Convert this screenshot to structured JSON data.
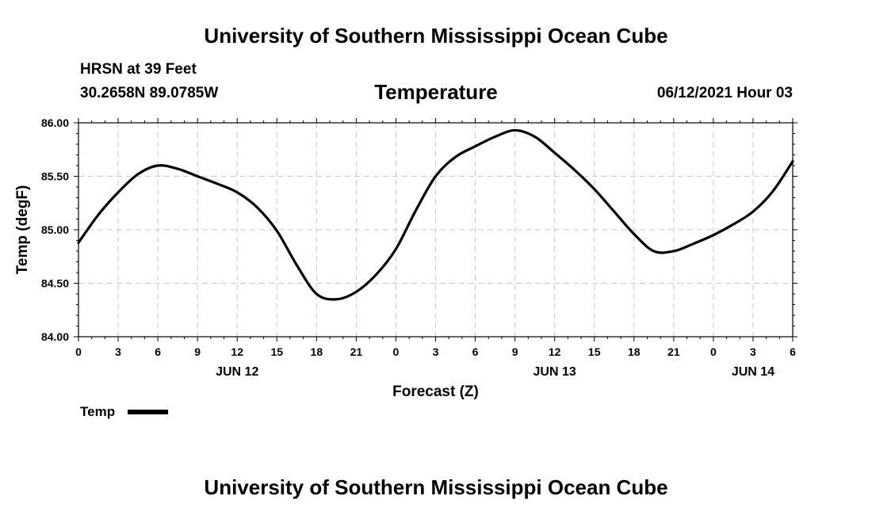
{
  "header": {
    "title": "University of Southern Mississippi Ocean Cube",
    "station": "HRSN at 39 Feet",
    "coords": "30.2658N  89.0785W",
    "variable": "Temperature",
    "datetime": "06/12/2021 Hour 03"
  },
  "footer": {
    "title": "University of Southern Mississippi Ocean Cube"
  },
  "chart_data": {
    "type": "line",
    "title": "Temperature",
    "xlabel": "Forecast (Z)",
    "ylabel": "Temp (degF)",
    "ylim": [
      84.0,
      86.0
    ],
    "xlim": [
      0,
      54
    ],
    "grid": true,
    "legend_position": "bottom-left",
    "y_ticks": [
      "84.00",
      "84.50",
      "85.00",
      "85.50",
      "86.00"
    ],
    "x_ticks": [
      "0",
      "3",
      "6",
      "9",
      "12",
      "15",
      "18",
      "21",
      "0",
      "3",
      "6",
      "9",
      "12",
      "15",
      "18",
      "21",
      "0",
      "3",
      "6"
    ],
    "date_labels": [
      {
        "hour_offset": 12,
        "label": "JUN 12"
      },
      {
        "hour_offset": 36,
        "label": "JUN 13"
      },
      {
        "hour_offset": 51,
        "label": "JUN 14"
      }
    ],
    "series": [
      {
        "name": "Temp",
        "color": "#000000",
        "x": [
          0,
          1.5,
          3,
          4.5,
          6,
          7.5,
          9,
          10.5,
          12,
          13.5,
          15,
          16.5,
          18,
          19.5,
          21,
          22.5,
          24,
          25.5,
          27,
          28.5,
          30,
          31.5,
          33,
          34.5,
          36,
          37.5,
          39,
          40.5,
          42,
          43.5,
          45,
          46.5,
          48,
          49.5,
          51,
          52.5,
          54
        ],
        "values": [
          84.88,
          85.14,
          85.35,
          85.52,
          85.6,
          85.57,
          85.5,
          85.43,
          85.35,
          85.21,
          84.99,
          84.67,
          84.4,
          84.35,
          84.42,
          84.58,
          84.82,
          85.18,
          85.5,
          85.68,
          85.78,
          85.87,
          85.93,
          85.87,
          85.72,
          85.56,
          85.38,
          85.17,
          84.96,
          84.8,
          84.8,
          84.87,
          84.95,
          85.05,
          85.17,
          85.36,
          85.64
        ]
      }
    ]
  }
}
